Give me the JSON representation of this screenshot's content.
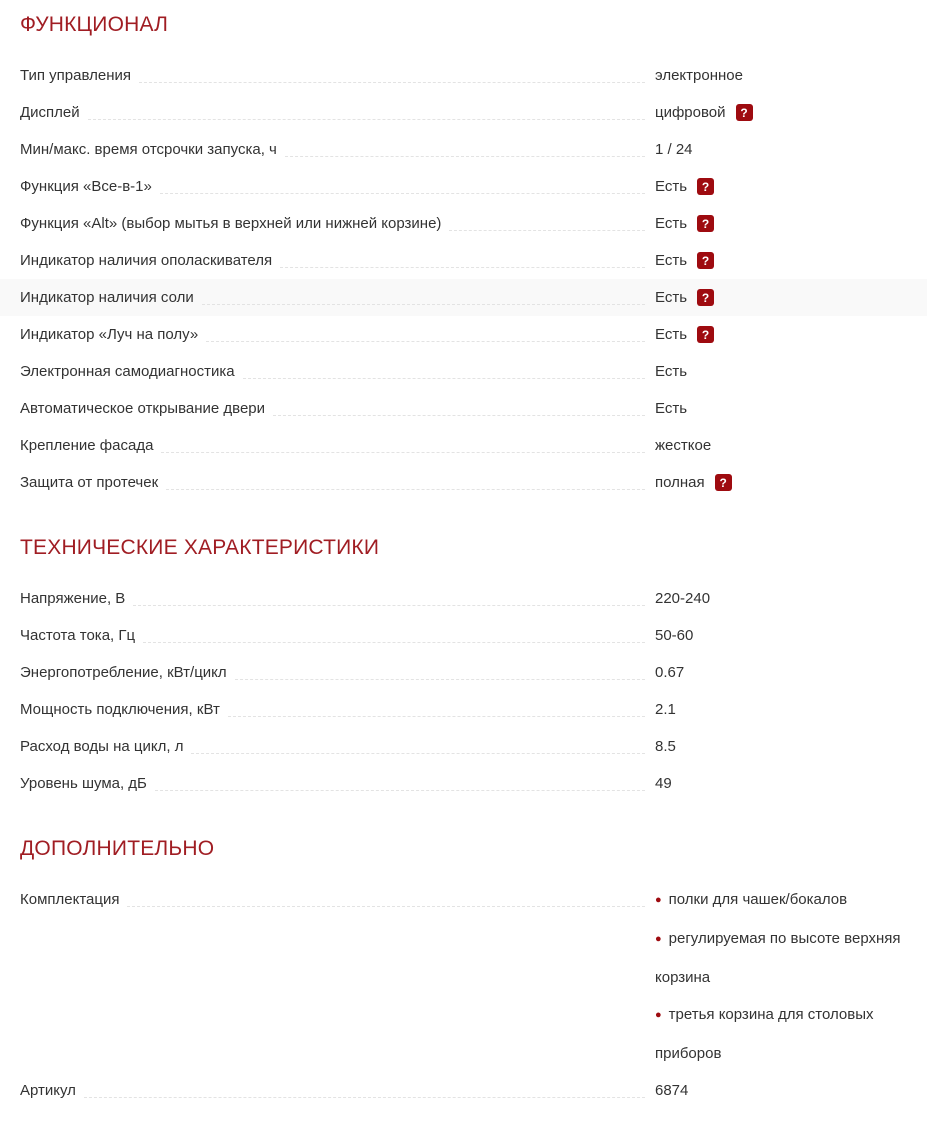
{
  "icons": {
    "help": "?",
    "bullet": "●"
  },
  "colors": {
    "section_header": "#a01d23",
    "help_icon_bg": "#9e0b10",
    "bullet": "#9e0b10",
    "highlight_row_bg": "#f9f9f9",
    "text": "#333333",
    "leader": "#e3e3e3"
  },
  "sections": [
    {
      "title": "ФУНКЦИОНАЛ",
      "rows": [
        {
          "label": "Тип управления",
          "value": "электронное"
        },
        {
          "label": "Дисплей",
          "value": "цифровой",
          "help": true
        },
        {
          "label": "Мин/макс. время отсрочки запуска, ч",
          "value": "1 / 24"
        },
        {
          "label": "Функция «Все-в-1»",
          "value": "Есть",
          "help": true
        },
        {
          "label": "Функция «Alt» (выбор мытья в верхней или нижней корзине)",
          "value": "Есть",
          "help": true
        },
        {
          "label": "Индикатор наличия ополаскивателя",
          "value": "Есть",
          "help": true
        },
        {
          "label": "Индикатор наличия соли",
          "value": "Есть",
          "help": true,
          "highlight": true
        },
        {
          "label": "Индикатор «Луч на полу»",
          "value": "Есть",
          "help": true
        },
        {
          "label": "Электронная самодиагностика",
          "value": "Есть"
        },
        {
          "label": "Автоматическое открывание двери",
          "value": "Есть"
        },
        {
          "label": "Крепление фасада",
          "value": "жесткое"
        },
        {
          "label": "Защита от протечек",
          "value": "полная",
          "help": true
        }
      ]
    },
    {
      "title": "ТЕХНИЧЕСКИЕ ХАРАКТЕРИСТИКИ",
      "rows": [
        {
          "label": "Напряжение, В",
          "value": "220-240"
        },
        {
          "label": "Частота тока, Гц",
          "value": "50-60"
        },
        {
          "label": "Энергопотребление, кВт/цикл",
          "value": "0.67"
        },
        {
          "label": "Мощность подключения, кВт",
          "value": "2.1"
        },
        {
          "label": "Расход воды на цикл, л",
          "value": "8.5"
        },
        {
          "label": "Уровень шума, дБ",
          "value": "49"
        }
      ]
    },
    {
      "title": "ДОПОЛНИТЕЛЬНО",
      "rows": [
        {
          "label": "Комплектация",
          "list": [
            "полки для чашек/бокалов",
            "регулируемая по высоте верхняя корзина",
            "третья корзина для столовых приборов"
          ]
        },
        {
          "label": "Артикул",
          "value": "6874"
        }
      ]
    }
  ]
}
